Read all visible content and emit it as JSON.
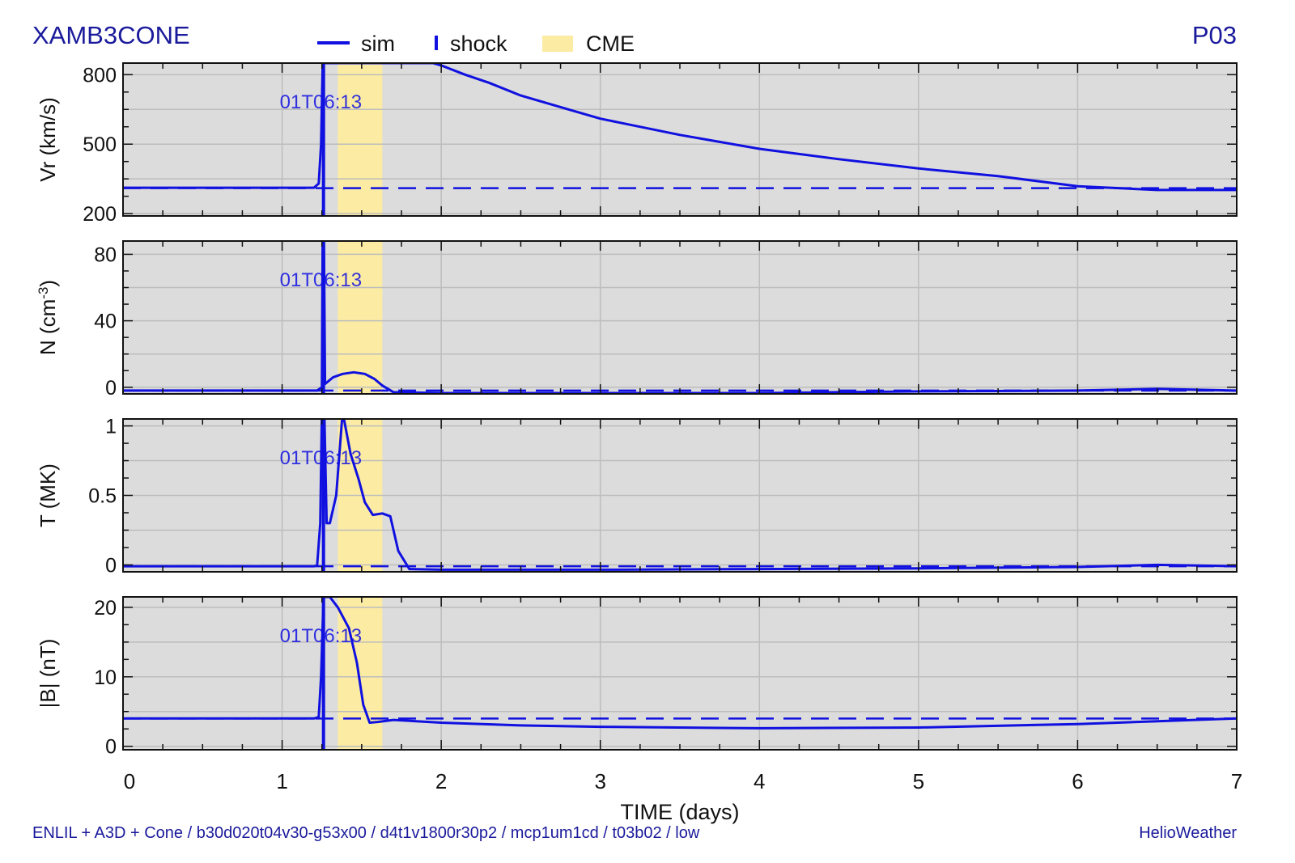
{
  "header": {
    "title": "XAMB3CONE",
    "probe": "P03"
  },
  "footer": {
    "left": "ENLIL + A3D + Cone / b30d020t04v30-g53x00 / d4t1v1800r30p2 / mcp1um1cd / t03b02 / low",
    "right": "HelioWeather"
  },
  "legend": {
    "sim": "sim",
    "shock": "shock",
    "cme": "CME"
  },
  "colors": {
    "series": "#1010e0",
    "panel_bg": "#dcdcdc",
    "cme_band": "#fbeba3",
    "grid": "#bdbdbd",
    "text_accent": "#1a1a9c"
  },
  "chart_data": {
    "type": "line",
    "xlabel": "TIME (days)",
    "xlim": [
      0,
      7
    ],
    "x_ticks": [
      "0",
      "1",
      "2",
      "3",
      "4",
      "5",
      "6",
      "7"
    ],
    "shock_time": 1.26,
    "shock_label": "01T06:13",
    "cme_interval": [
      1.35,
      1.63
    ],
    "panels": [
      {
        "ylabel": "Vr (km/s)",
        "ylim": [
          190,
          850
        ],
        "y_ticks": [
          200,
          500,
          800
        ],
        "baseline": 310,
        "sim": [
          [
            0,
            312
          ],
          [
            1.2,
            312
          ],
          [
            1.23,
            330
          ],
          [
            1.245,
            500
          ],
          [
            1.255,
            850
          ],
          [
            1.27,
            850
          ],
          [
            1.6,
            850
          ],
          [
            1.95,
            850
          ],
          [
            2,
            840
          ],
          [
            2.15,
            800
          ],
          [
            2.3,
            765
          ],
          [
            2.5,
            710
          ],
          [
            2.8,
            650
          ],
          [
            3,
            610
          ],
          [
            3.5,
            540
          ],
          [
            4,
            480
          ],
          [
            4.5,
            435
          ],
          [
            5,
            395
          ],
          [
            5.5,
            362
          ],
          [
            6,
            318
          ],
          [
            6.5,
            302
          ],
          [
            7,
            302
          ]
        ]
      },
      {
        "ylabel": "N (cm-3)",
        "ylim": [
          -4,
          88
        ],
        "y_ticks": [
          0,
          40,
          80
        ],
        "baseline": -2,
        "sim": [
          [
            0,
            -2
          ],
          [
            1.22,
            -2
          ],
          [
            1.25,
            0
          ],
          [
            1.255,
            95
          ],
          [
            1.262,
            95
          ],
          [
            1.27,
            2
          ],
          [
            1.32,
            6
          ],
          [
            1.38,
            8
          ],
          [
            1.45,
            9
          ],
          [
            1.52,
            8
          ],
          [
            1.58,
            5
          ],
          [
            1.63,
            1
          ],
          [
            1.7,
            -3
          ],
          [
            2,
            -3.5
          ],
          [
            3,
            -3.5
          ],
          [
            4,
            -3.5
          ],
          [
            4.5,
            -3
          ],
          [
            5,
            -2.5
          ],
          [
            6,
            -2
          ],
          [
            6.5,
            -1
          ],
          [
            7,
            -2
          ]
        ]
      },
      {
        "ylabel": "T (MK)",
        "ylim": [
          -0.05,
          1.05
        ],
        "y_ticks": [
          0,
          0.5,
          1
        ],
        "baseline": -0.01,
        "sim": [
          [
            0,
            -0.01
          ],
          [
            1.2,
            -0.01
          ],
          [
            1.22,
            -0.005
          ],
          [
            1.24,
            0.3
          ],
          [
            1.25,
            1.1
          ],
          [
            1.265,
            1.1
          ],
          [
            1.28,
            0.3
          ],
          [
            1.3,
            0.3
          ],
          [
            1.34,
            0.5
          ],
          [
            1.38,
            1.1
          ],
          [
            1.43,
            0.8
          ],
          [
            1.48,
            0.62
          ],
          [
            1.52,
            0.45
          ],
          [
            1.57,
            0.36
          ],
          [
            1.63,
            0.37
          ],
          [
            1.68,
            0.35
          ],
          [
            1.73,
            0.1
          ],
          [
            1.8,
            -0.03
          ],
          [
            2,
            -0.035
          ],
          [
            3,
            -0.035
          ],
          [
            4,
            -0.03
          ],
          [
            5,
            -0.025
          ],
          [
            6,
            -0.015
          ],
          [
            6.5,
            0
          ],
          [
            7,
            -0.01
          ]
        ]
      },
      {
        "ylabel": "|B| (nT)",
        "ylim": [
          -0.5,
          21.5
        ],
        "y_ticks": [
          0,
          10,
          20
        ],
        "baseline": 4,
        "sim": [
          [
            0,
            4
          ],
          [
            1.2,
            4
          ],
          [
            1.23,
            4.2
          ],
          [
            1.245,
            10
          ],
          [
            1.26,
            21.5
          ],
          [
            1.3,
            21.5
          ],
          [
            1.35,
            20
          ],
          [
            1.42,
            17
          ],
          [
            1.47,
            12
          ],
          [
            1.51,
            6
          ],
          [
            1.55,
            3.4
          ],
          [
            1.6,
            3.5
          ],
          [
            1.7,
            3.8
          ],
          [
            2,
            3.4
          ],
          [
            2.5,
            3
          ],
          [
            3,
            2.8
          ],
          [
            4,
            2.6
          ],
          [
            5,
            2.7
          ],
          [
            6,
            3.2
          ],
          [
            6.5,
            3.6
          ],
          [
            7,
            4
          ]
        ]
      }
    ]
  }
}
